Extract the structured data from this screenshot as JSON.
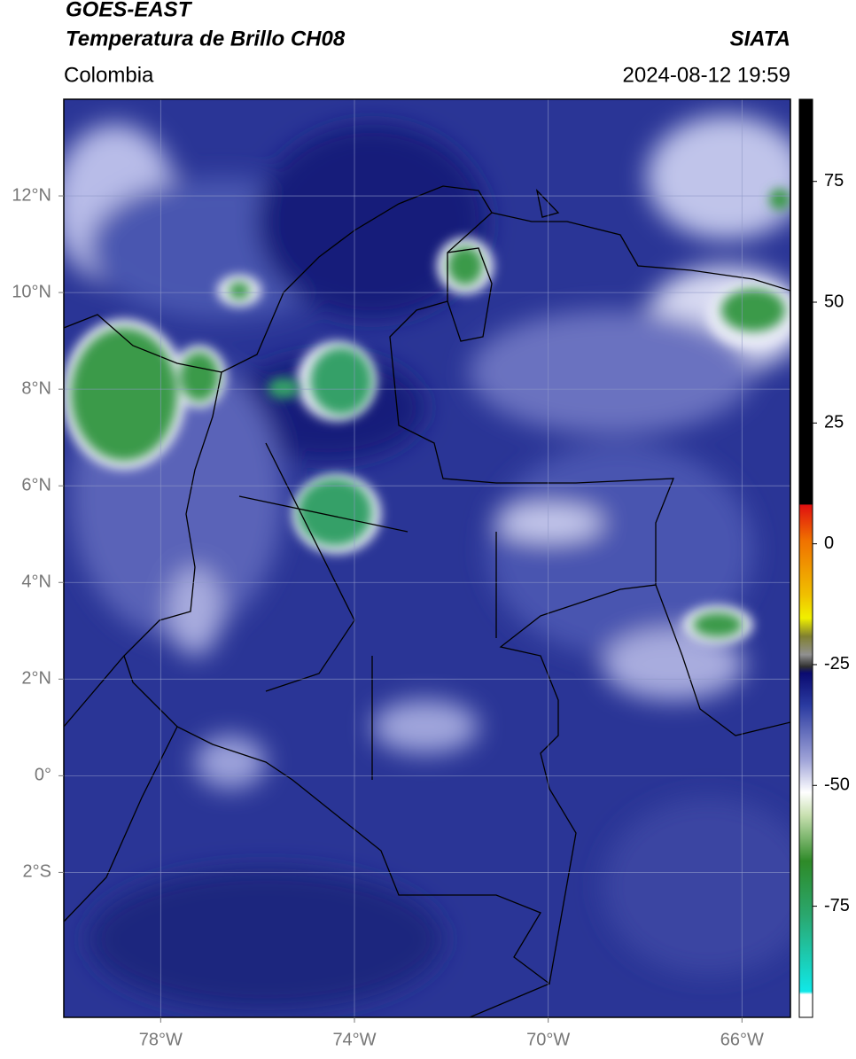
{
  "header": {
    "satellite": "GOES-EAST",
    "product": "Temperatura de Brillo CH08",
    "region": "Colombia",
    "source": "SIATA",
    "datetime": "2024-08-12 19:59"
  },
  "map": {
    "xlim": [
      -80,
      -65
    ],
    "ylim": [
      -5,
      14
    ],
    "grid": true,
    "xticks": [
      {
        "value": -78,
        "label": "78°W"
      },
      {
        "value": -74,
        "label": "74°W"
      },
      {
        "value": -70,
        "label": "70°W"
      },
      {
        "value": -66,
        "label": "66°W"
      }
    ],
    "yticks": [
      {
        "value": 12,
        "label": "12°N"
      },
      {
        "value": 10,
        "label": "10°N"
      },
      {
        "value": 8,
        "label": "8°N"
      },
      {
        "value": 6,
        "label": "6°N"
      },
      {
        "value": 4,
        "label": "4°N"
      },
      {
        "value": 2,
        "label": "2°N"
      },
      {
        "value": 0,
        "label": "0°"
      },
      {
        "value": -2,
        "label": "2°S"
      }
    ]
  },
  "colorbar": {
    "lim": [
      -98,
      92
    ],
    "ticks": [
      75,
      50,
      25,
      0,
      -25,
      -50,
      -75
    ]
  }
}
